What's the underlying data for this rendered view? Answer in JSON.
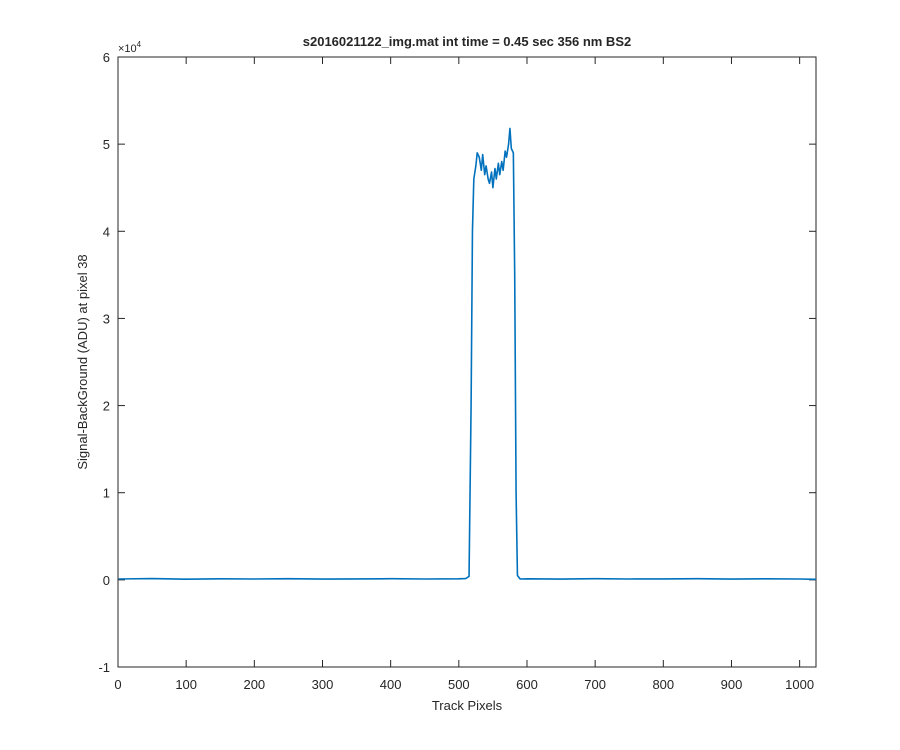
{
  "chart_data": {
    "type": "line",
    "title": "s2016021122_img.mat int time = 0.45 sec  356 nm BS2",
    "x_label": "Track Pixels",
    "y_label": "Signal-BackGround (ADU) at pixel 38",
    "y_multiplier": {
      "base": "×10",
      "exponent": "4"
    },
    "color": "#0072bd",
    "x": [
      1,
      50,
      100,
      150,
      200,
      250,
      300,
      350,
      400,
      450,
      500,
      510,
      515,
      518,
      520,
      522,
      525,
      527,
      530,
      533,
      535,
      538,
      540,
      543,
      545,
      548,
      550,
      553,
      555,
      558,
      560,
      563,
      565,
      568,
      570,
      573,
      575,
      577,
      580,
      582,
      584,
      586,
      590,
      600,
      650,
      700,
      750,
      800,
      850,
      900,
      950,
      1000,
      1024
    ],
    "values": [
      100,
      150,
      80,
      120,
      100,
      140,
      90,
      110,
      130,
      100,
      120,
      150,
      400,
      20000,
      40000,
      46000,
      47500,
      49000,
      48500,
      47000,
      48800,
      46500,
      47500,
      46000,
      45500,
      46800,
      45000,
      47200,
      46000,
      47800,
      46500,
      48000,
      47000,
      49200,
      48500,
      50000,
      51800,
      49500,
      49000,
      35000,
      10000,
      500,
      100,
      120,
      90,
      130,
      100,
      110,
      140,
      90,
      120,
      100,
      60
    ],
    "xlim": [
      0,
      1024
    ],
    "xticks": [
      0,
      100,
      200,
      300,
      400,
      500,
      600,
      700,
      800,
      900,
      1000
    ],
    "ylim": [
      -10000,
      60000
    ],
    "yticks": [
      {
        "value": -10000,
        "label": "-1"
      },
      {
        "value": 0,
        "label": "0"
      },
      {
        "value": 10000,
        "label": "1"
      },
      {
        "value": 20000,
        "label": "2"
      },
      {
        "value": 30000,
        "label": "3"
      },
      {
        "value": 40000,
        "label": "4"
      },
      {
        "value": 50000,
        "label": "5"
      },
      {
        "value": 60000,
        "label": "6"
      }
    ]
  }
}
